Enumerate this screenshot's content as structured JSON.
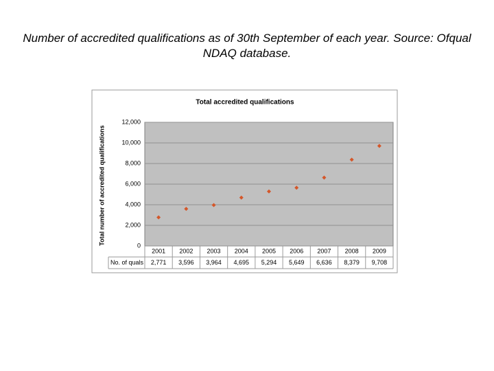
{
  "caption": "Number of accredited qualifications as of 30th September of each year. Source: Ofqual NDAQ database.",
  "chart_data": {
    "type": "scatter",
    "title": "Total accredited qualifications",
    "y_label": "Total number of accredited qualifications",
    "categories": [
      "2001",
      "2002",
      "2003",
      "2004",
      "2005",
      "2006",
      "2007",
      "2008",
      "2009"
    ],
    "series": [
      {
        "name": "No. of quals",
        "color": "#d4572a",
        "values": [
          2771,
          3596,
          3964,
          4695,
          5294,
          5649,
          6636,
          8379,
          9708
        ],
        "value_labels": [
          "2,771",
          "3,596",
          "3,964",
          "4,695",
          "5,294",
          "5,649",
          "6,636",
          "8,379",
          "9,708"
        ]
      }
    ],
    "ylim": [
      0,
      12000
    ],
    "yticks": [
      0,
      {
        "value": 2000,
        "label": "2,000"
      },
      {
        "value": 4000,
        "label": "4,000"
      },
      {
        "value": 6000,
        "label": "6,000"
      },
      {
        "value": 8000,
        "label": "8,000"
      },
      {
        "value": 10000,
        "label": "10,000"
      },
      {
        "value": 12000,
        "label": "12,000"
      }
    ],
    "grid": true
  }
}
